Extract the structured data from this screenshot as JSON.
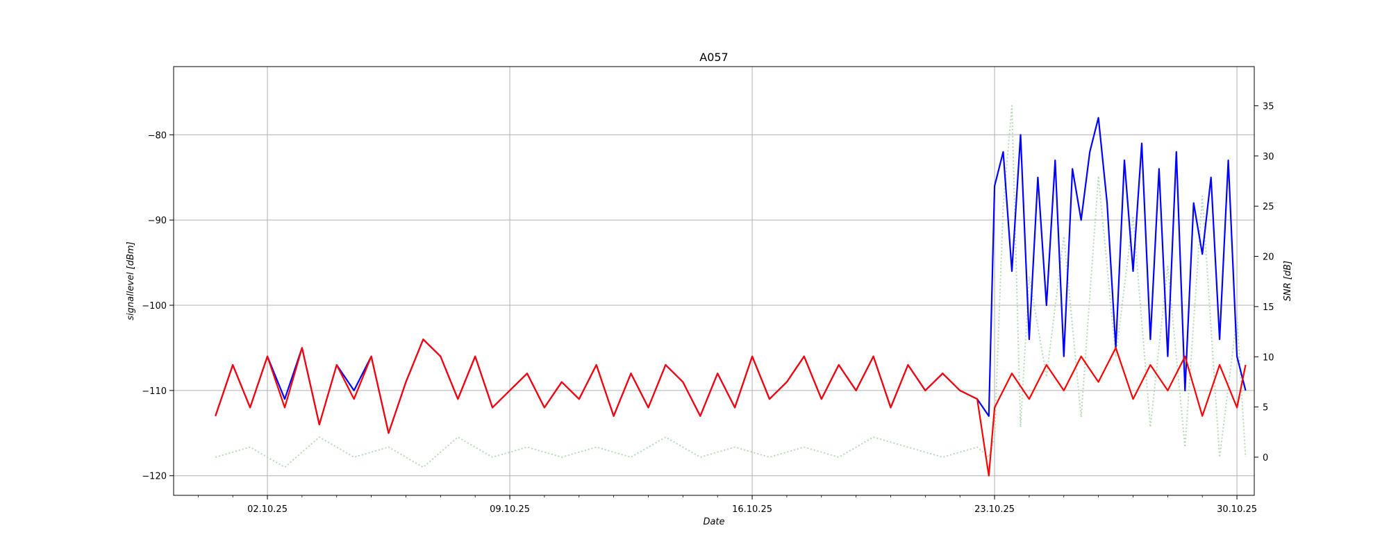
{
  "chart_data": {
    "type": "line",
    "title": "A057",
    "xlabel": "Date",
    "ylabel_left": "signallevel [dBm]",
    "ylabel_right": "SNR [dB]",
    "grid": true,
    "x_range": [
      "2025-09-29T07:00",
      "2025-10-30T12:00"
    ],
    "x_ticks": [
      "02.10.25",
      "09.10.25",
      "16.10.25",
      "23.10.25",
      "30.10.25"
    ],
    "y_left_range": [
      -122.3,
      -72
    ],
    "y_left_ticks": [
      -80,
      -90,
      -100,
      -110,
      -120
    ],
    "y_right_range": [
      -3.8,
      38.9
    ],
    "y_right_ticks": [
      35,
      30,
      25,
      20,
      15,
      10,
      5,
      0
    ],
    "series": [
      {
        "axis": "left",
        "style": "solid",
        "color": "#0000ff",
        "x": [
          "2025-09-30T12:00",
          "2025-10-01T00:00",
          "2025-10-01T12:00",
          "2025-10-02T00:00",
          "2025-10-02T12:00",
          "2025-10-03T00:00",
          "2025-10-03T12:00",
          "2025-10-04T00:00",
          "2025-10-04T12:00",
          "2025-10-05T00:00",
          "2025-10-05T12:00",
          "2025-10-06T00:00",
          "2025-10-06T12:00",
          "2025-10-07T00:00",
          "2025-10-07T12:00",
          "2025-10-08T00:00",
          "2025-10-08T12:00",
          "2025-10-09T00:00",
          "2025-10-09T12:00",
          "2025-10-10T00:00",
          "2025-10-10T12:00",
          "2025-10-11T00:00",
          "2025-10-11T12:00",
          "2025-10-12T00:00",
          "2025-10-12T12:00",
          "2025-10-13T00:00",
          "2025-10-13T12:00",
          "2025-10-14T00:00",
          "2025-10-14T12:00",
          "2025-10-15T00:00",
          "2025-10-15T12:00",
          "2025-10-16T00:00",
          "2025-10-16T12:00",
          "2025-10-17T00:00",
          "2025-10-17T12:00",
          "2025-10-18T00:00",
          "2025-10-18T12:00",
          "2025-10-19T00:00",
          "2025-10-19T12:00",
          "2025-10-20T00:00",
          "2025-10-20T12:00",
          "2025-10-21T00:00",
          "2025-10-21T12:00",
          "2025-10-22T00:00",
          "2025-10-22T12:00",
          "2025-10-22T20:00",
          "2025-10-23T00:00",
          "2025-10-23T06:00",
          "2025-10-23T12:00",
          "2025-10-23T18:00",
          "2025-10-24T00:00",
          "2025-10-24T06:00",
          "2025-10-24T12:00",
          "2025-10-24T18:00",
          "2025-10-25T00:00",
          "2025-10-25T06:00",
          "2025-10-25T12:00",
          "2025-10-25T18:00",
          "2025-10-26T00:00",
          "2025-10-26T06:00",
          "2025-10-26T12:00",
          "2025-10-26T18:00",
          "2025-10-27T00:00",
          "2025-10-27T06:00",
          "2025-10-27T12:00",
          "2025-10-27T18:00",
          "2025-10-28T00:00",
          "2025-10-28T06:00",
          "2025-10-28T12:00",
          "2025-10-28T18:00",
          "2025-10-29T00:00",
          "2025-10-29T06:00",
          "2025-10-29T12:00",
          "2025-10-29T18:00",
          "2025-10-30T00:00",
          "2025-10-30T06:00"
        ],
        "y": [
          -113,
          -107,
          -112,
          -106,
          -111,
          -105,
          -114,
          -107,
          -110,
          -106,
          -115,
          -109,
          -104,
          -106,
          -111,
          -106,
          -112,
          -110,
          -108,
          -112,
          -109,
          -111,
          -107,
          -113,
          -108,
          -112,
          -107,
          -109,
          -113,
          -108,
          -112,
          -106,
          -111,
          -109,
          -106,
          -111,
          -107,
          -110,
          -106,
          -112,
          -107,
          -110,
          -108,
          -110,
          -111,
          -113,
          -86,
          -82,
          -96,
          -80,
          -104,
          -85,
          -100,
          -83,
          -106,
          -84,
          -90,
          -82,
          -78,
          -88,
          -105,
          -83,
          -96,
          -81,
          -104,
          -84,
          -106,
          -82,
          -110,
          -88,
          -94,
          -85,
          -104,
          -83,
          -106,
          -110
        ]
      },
      {
        "axis": "left",
        "style": "solid",
        "color": "#ff0000",
        "x": [
          "2025-09-30T12:00",
          "2025-10-01T00:00",
          "2025-10-01T12:00",
          "2025-10-02T00:00",
          "2025-10-02T12:00",
          "2025-10-03T00:00",
          "2025-10-03T12:00",
          "2025-10-04T00:00",
          "2025-10-04T12:00",
          "2025-10-05T00:00",
          "2025-10-05T12:00",
          "2025-10-06T00:00",
          "2025-10-06T12:00",
          "2025-10-07T00:00",
          "2025-10-07T12:00",
          "2025-10-08T00:00",
          "2025-10-08T12:00",
          "2025-10-09T00:00",
          "2025-10-09T12:00",
          "2025-10-10T00:00",
          "2025-10-10T12:00",
          "2025-10-11T00:00",
          "2025-10-11T12:00",
          "2025-10-12T00:00",
          "2025-10-12T12:00",
          "2025-10-13T00:00",
          "2025-10-13T12:00",
          "2025-10-14T00:00",
          "2025-10-14T12:00",
          "2025-10-15T00:00",
          "2025-10-15T12:00",
          "2025-10-16T00:00",
          "2025-10-16T12:00",
          "2025-10-17T00:00",
          "2025-10-17T12:00",
          "2025-10-18T00:00",
          "2025-10-18T12:00",
          "2025-10-19T00:00",
          "2025-10-19T12:00",
          "2025-10-20T00:00",
          "2025-10-20T12:00",
          "2025-10-21T00:00",
          "2025-10-21T12:00",
          "2025-10-22T00:00",
          "2025-10-22T12:00",
          "2025-10-22T20:00",
          "2025-10-23T00:00",
          "2025-10-23T12:00",
          "2025-10-24T00:00",
          "2025-10-24T12:00",
          "2025-10-25T00:00",
          "2025-10-25T12:00",
          "2025-10-26T00:00",
          "2025-10-26T12:00",
          "2025-10-27T00:00",
          "2025-10-27T12:00",
          "2025-10-28T00:00",
          "2025-10-28T12:00",
          "2025-10-29T00:00",
          "2025-10-29T12:00",
          "2025-10-30T00:00",
          "2025-10-30T06:00"
        ],
        "y": [
          -113,
          -107,
          -112,
          -106,
          -112,
          -105,
          -114,
          -107,
          -111,
          -106,
          -115,
          -109,
          -104,
          -106,
          -111,
          -106,
          -112,
          -110,
          -108,
          -112,
          -109,
          -111,
          -107,
          -113,
          -108,
          -112,
          -107,
          -109,
          -113,
          -108,
          -112,
          -106,
          -111,
          -109,
          -106,
          -111,
          -107,
          -110,
          -106,
          -112,
          -107,
          -110,
          -108,
          -110,
          -111,
          -120,
          -112,
          -108,
          -111,
          -107,
          -110,
          -106,
          -109,
          -105,
          -111,
          -107,
          -110,
          -106,
          -113,
          -107,
          -112,
          -107
        ]
      },
      {
        "axis": "right",
        "style": "dotted",
        "color": "#b3d9b3",
        "x": [
          "2025-09-30T12:00",
          "2025-10-01T12:00",
          "2025-10-02T12:00",
          "2025-10-03T12:00",
          "2025-10-04T12:00",
          "2025-10-05T12:00",
          "2025-10-06T12:00",
          "2025-10-07T12:00",
          "2025-10-08T12:00",
          "2025-10-09T12:00",
          "2025-10-10T12:00",
          "2025-10-11T12:00",
          "2025-10-12T12:00",
          "2025-10-13T12:00",
          "2025-10-14T12:00",
          "2025-10-15T12:00",
          "2025-10-16T12:00",
          "2025-10-17T12:00",
          "2025-10-18T12:00",
          "2025-10-19T12:00",
          "2025-10-20T12:00",
          "2025-10-21T12:00",
          "2025-10-22T12:00",
          "2025-10-22T20:00",
          "2025-10-23T00:00",
          "2025-10-23T06:00",
          "2025-10-23T12:00",
          "2025-10-23T18:00",
          "2025-10-24T00:00",
          "2025-10-24T12:00",
          "2025-10-25T00:00",
          "2025-10-25T12:00",
          "2025-10-26T00:00",
          "2025-10-26T12:00",
          "2025-10-27T00:00",
          "2025-10-27T12:00",
          "2025-10-28T00:00",
          "2025-10-28T12:00",
          "2025-10-29T00:00",
          "2025-10-29T12:00",
          "2025-10-30T00:00",
          "2025-10-30T06:00"
        ],
        "y": [
          0,
          1,
          -1,
          2,
          0,
          1,
          -1,
          2,
          0,
          1,
          0,
          1,
          0,
          2,
          0,
          1,
          0,
          1,
          0,
          2,
          1,
          0,
          1,
          0,
          2,
          25,
          35,
          3,
          18,
          8,
          22,
          4,
          28,
          10,
          24,
          3,
          19,
          1,
          26,
          0,
          14,
          0
        ]
      }
    ]
  }
}
